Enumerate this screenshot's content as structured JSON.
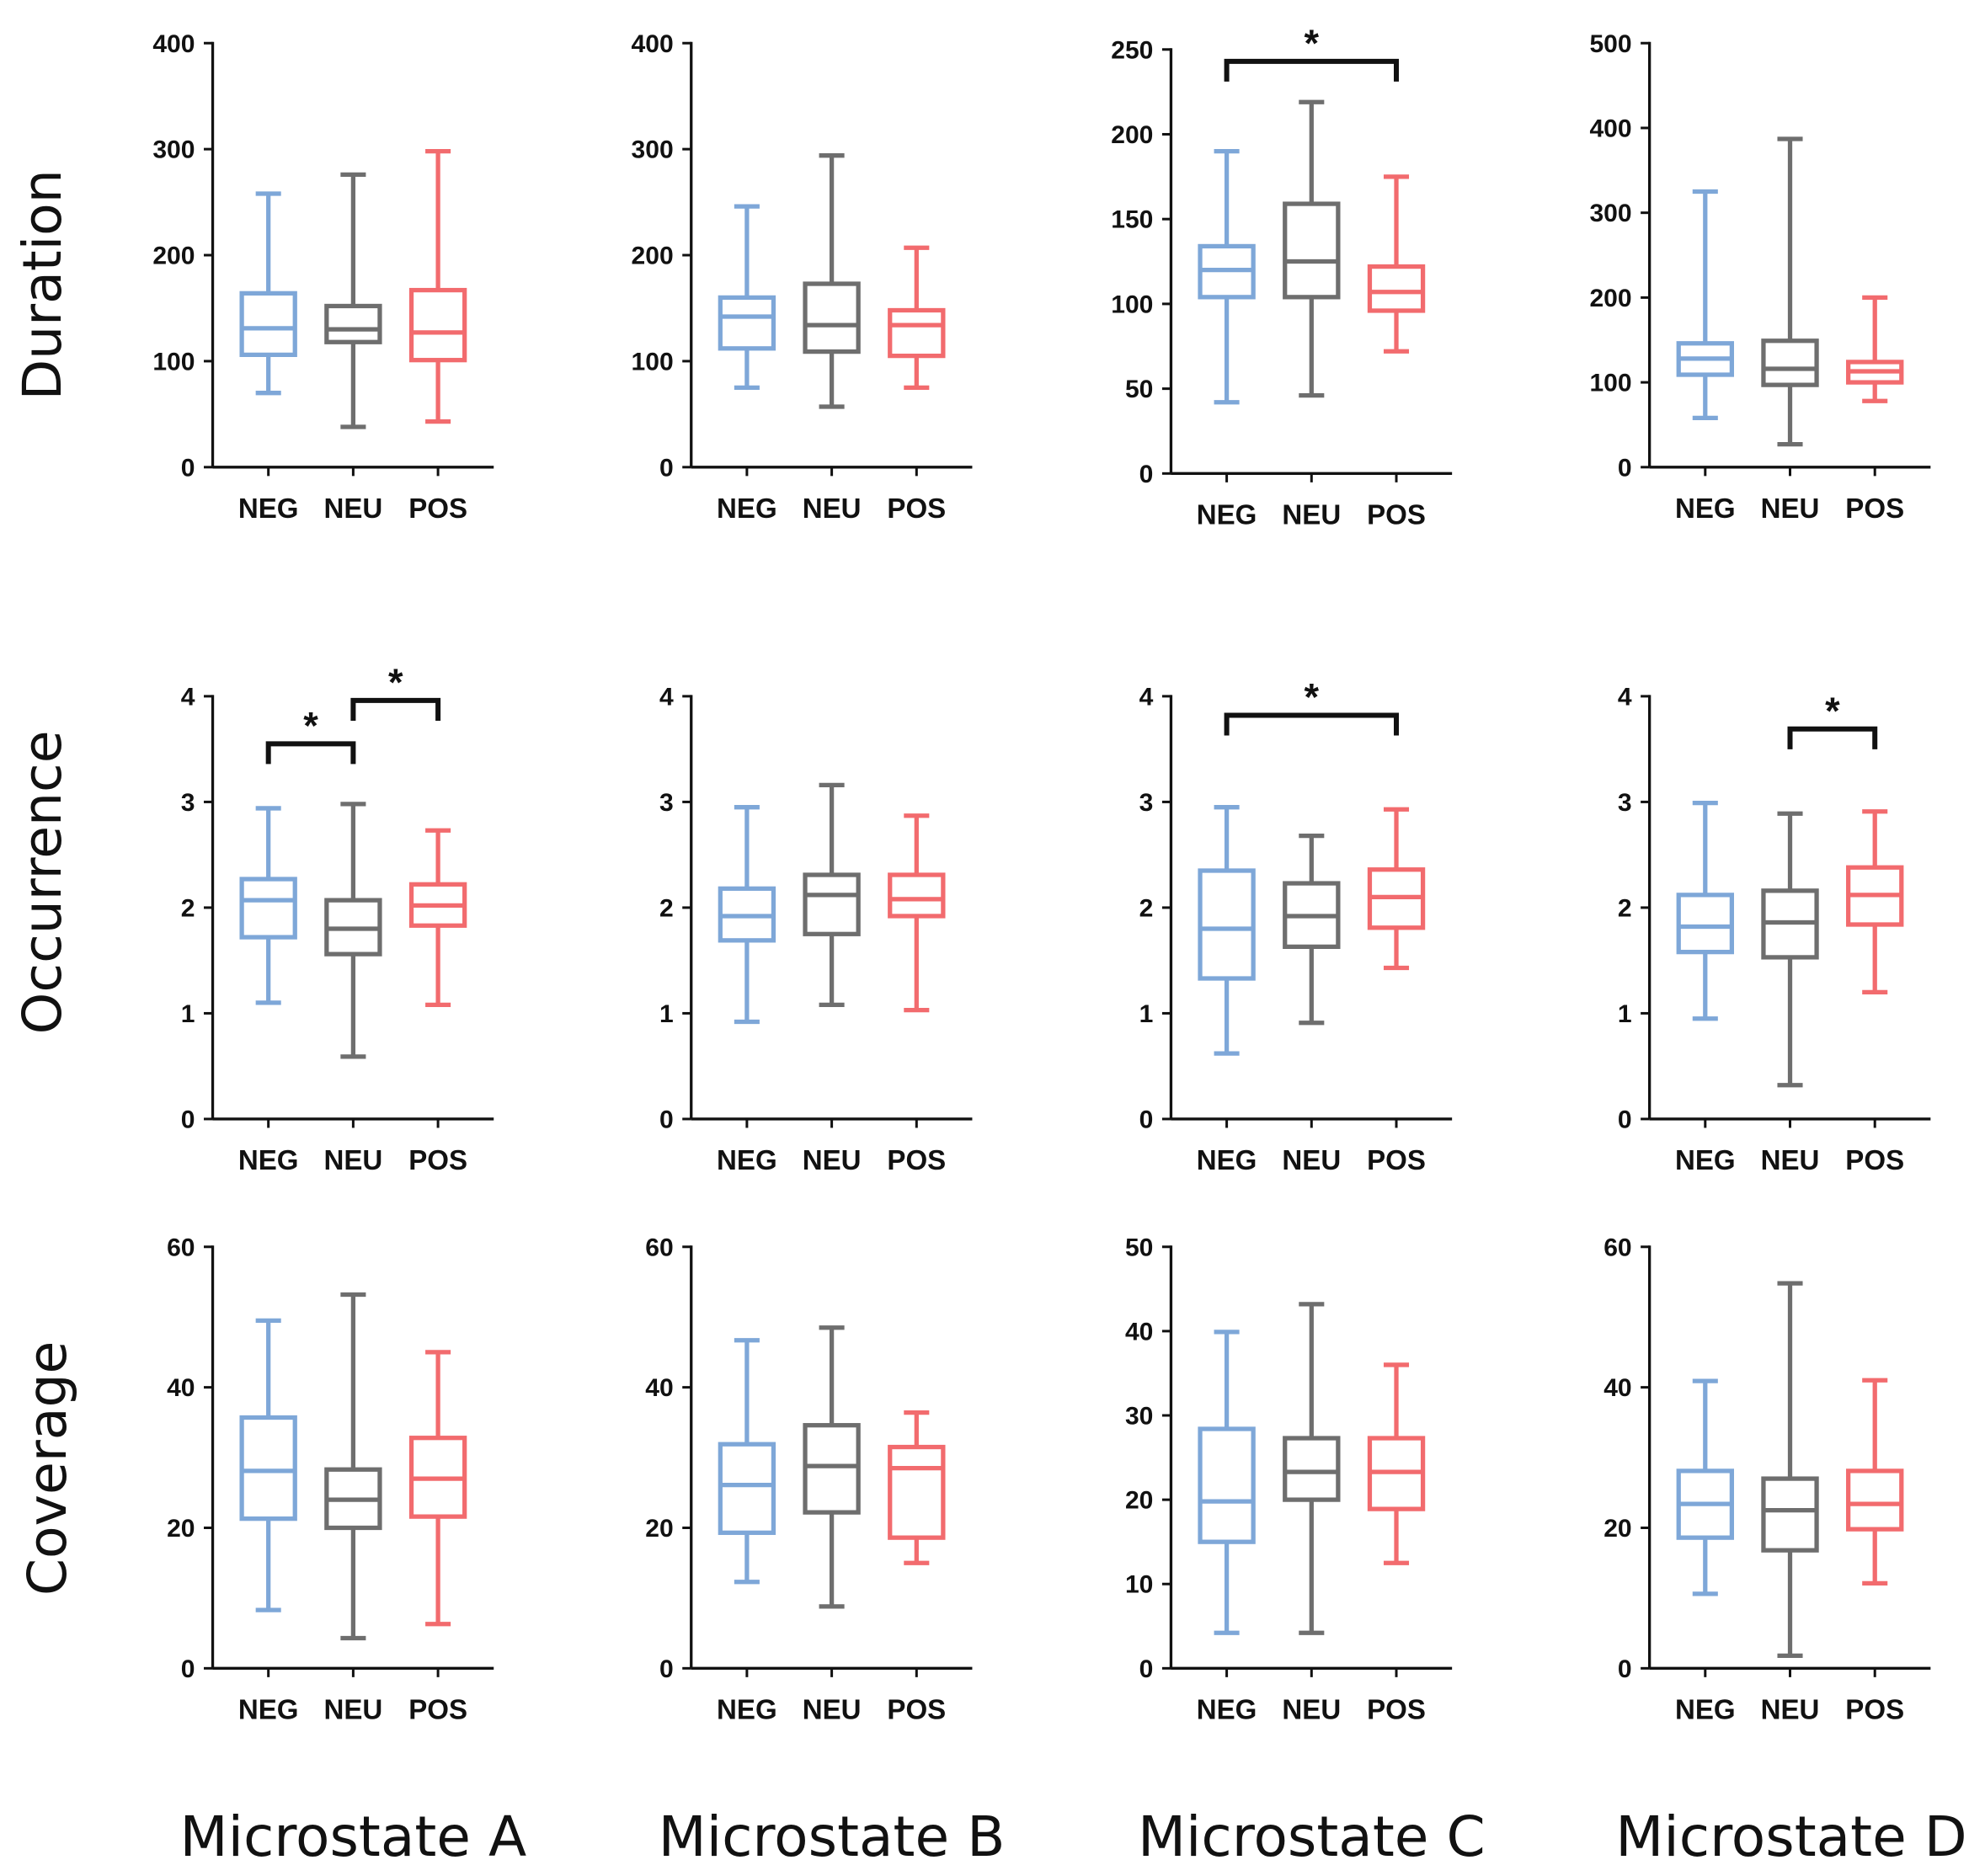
{
  "chart_data": {
    "type": "boxplot",
    "row_labels": [
      "Duration",
      "Occurrence",
      "Coverage"
    ],
    "column_labels": [
      "Microstate A",
      "Microstate B",
      "Microstate C",
      "Microstate D"
    ],
    "categories": [
      "NEG",
      "NEU",
      "POS"
    ],
    "colors": {
      "NEG": "#7ea7d8",
      "NEU": "#6e6e6e",
      "POS": "#f26b6e"
    },
    "panels": [
      {
        "row": 0,
        "col": 0,
        "ylim": [
          0,
          400
        ],
        "ticks": [
          0,
          100,
          200,
          300,
          400
        ],
        "boxes": [
          [
            70,
            106,
            131,
            164,
            258
          ],
          [
            38,
            118,
            130,
            152,
            276
          ],
          [
            43,
            101,
            127,
            167,
            298
          ]
        ],
        "significance": []
      },
      {
        "row": 0,
        "col": 1,
        "ylim": [
          0,
          400
        ],
        "ticks": [
          0,
          100,
          200,
          300,
          400
        ],
        "boxes": [
          [
            75,
            112,
            142,
            160,
            246
          ],
          [
            57,
            109,
            134,
            173,
            294
          ],
          [
            75,
            105,
            134,
            148,
            207
          ]
        ],
        "significance": []
      },
      {
        "row": 0,
        "col": 2,
        "ylim": [
          0,
          250
        ],
        "ticks": [
          0,
          50,
          100,
          150,
          200,
          250
        ],
        "boxes": [
          [
            42,
            104,
            120,
            134,
            190
          ],
          [
            46,
            104,
            125,
            159,
            219
          ],
          [
            72,
            96,
            107,
            122,
            175
          ]
        ],
        "significance": [
          {
            "from": "NEG",
            "to": "POS",
            "level": 243,
            "label": "*"
          }
        ]
      },
      {
        "row": 0,
        "col": 3,
        "ylim": [
          0,
          500
        ],
        "ticks": [
          0,
          100,
          200,
          300,
          400,
          500
        ],
        "boxes": [
          [
            58,
            109,
            128,
            146,
            325
          ],
          [
            27,
            97,
            116,
            149,
            387
          ],
          [
            78,
            100,
            113,
            124,
            200
          ]
        ],
        "significance": []
      },
      {
        "row": 1,
        "col": 0,
        "ylim": [
          0,
          4
        ],
        "ticks": [
          0,
          1,
          2,
          3,
          4
        ],
        "boxes": [
          [
            1.1,
            1.72,
            2.07,
            2.27,
            2.94
          ],
          [
            0.59,
            1.56,
            1.8,
            2.07,
            2.98
          ],
          [
            1.08,
            1.83,
            2.02,
            2.22,
            2.73
          ]
        ],
        "significance": [
          {
            "from": "NEG",
            "to": "NEU",
            "level": 3.55,
            "label": "*"
          },
          {
            "from": "NEU",
            "to": "POS",
            "level": 3.96,
            "label": "*"
          }
        ]
      },
      {
        "row": 1,
        "col": 1,
        "ylim": [
          0,
          4
        ],
        "ticks": [
          0,
          1,
          2,
          3,
          4
        ],
        "boxes": [
          [
            0.92,
            1.69,
            1.92,
            2.18,
            2.95
          ],
          [
            1.08,
            1.75,
            2.12,
            2.31,
            3.16
          ],
          [
            1.03,
            1.92,
            2.08,
            2.31,
            2.87
          ]
        ],
        "significance": []
      },
      {
        "row": 1,
        "col": 2,
        "ylim": [
          0,
          4
        ],
        "ticks": [
          0,
          1,
          2,
          3,
          4
        ],
        "boxes": [
          [
            0.62,
            1.33,
            1.8,
            2.35,
            2.95
          ],
          [
            0.91,
            1.63,
            1.92,
            2.23,
            2.68
          ],
          [
            1.43,
            1.81,
            2.1,
            2.36,
            2.93
          ]
        ],
        "significance": [
          {
            "from": "NEG",
            "to": "POS",
            "level": 3.82,
            "label": "*"
          }
        ]
      },
      {
        "row": 1,
        "col": 3,
        "ylim": [
          0,
          4
        ],
        "ticks": [
          0,
          1,
          2,
          3,
          4
        ],
        "boxes": [
          [
            0.95,
            1.58,
            1.82,
            2.12,
            2.99
          ],
          [
            0.32,
            1.53,
            1.86,
            2.16,
            2.89
          ],
          [
            1.2,
            1.84,
            2.12,
            2.38,
            2.91
          ]
        ],
        "significance": [
          {
            "from": "NEU",
            "to": "POS",
            "level": 3.69,
            "label": "*"
          }
        ]
      },
      {
        "row": 2,
        "col": 0,
        "ylim": [
          0,
          60
        ],
        "ticks": [
          0,
          20,
          40,
          60
        ],
        "boxes": [
          [
            8.3,
            21.3,
            28.1,
            35.7,
            49.5
          ],
          [
            4.3,
            20,
            24,
            28.3,
            53.2
          ],
          [
            6.3,
            21.6,
            27,
            32.8,
            45
          ]
        ],
        "significance": []
      },
      {
        "row": 2,
        "col": 1,
        "ylim": [
          0,
          60
        ],
        "ticks": [
          0,
          20,
          40,
          60
        ],
        "boxes": [
          [
            12.3,
            19.3,
            26.1,
            31.9,
            46.7
          ],
          [
            8.8,
            22.2,
            28.8,
            34.6,
            48.5
          ],
          [
            15,
            18.6,
            28.5,
            31.5,
            36.4
          ]
        ],
        "significance": []
      },
      {
        "row": 2,
        "col": 2,
        "ylim": [
          0,
          50
        ],
        "ticks": [
          0,
          10,
          20,
          30,
          40,
          50
        ],
        "boxes": [
          [
            4.2,
            15,
            19.8,
            28.4,
            39.9
          ],
          [
            4.2,
            20,
            23.3,
            27.3,
            43.2
          ],
          [
            12.5,
            18.9,
            23.3,
            27.3,
            36
          ]
        ],
        "significance": []
      },
      {
        "row": 2,
        "col": 3,
        "ylim": [
          0,
          60
        ],
        "ticks": [
          0,
          20,
          40,
          60
        ],
        "boxes": [
          [
            10.6,
            18.6,
            23.4,
            28.1,
            40.9
          ],
          [
            1.8,
            16.8,
            22.5,
            27,
            54.8
          ],
          [
            12.1,
            19.8,
            23.4,
            28.1,
            41
          ]
        ],
        "significance": []
      }
    ]
  }
}
